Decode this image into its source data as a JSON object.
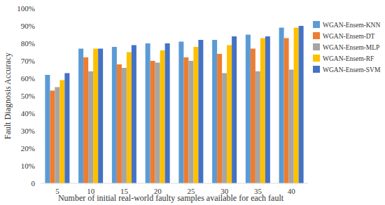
{
  "chart_data": {
    "type": "bar",
    "x_label": "Number of initial real-world faulty samples available for each fault",
    "y_label": "Fault Diagnosis Accuracy",
    "categories": [
      "5",
      "10",
      "15",
      "20",
      "25",
      "30",
      "35",
      "40"
    ],
    "series": [
      {
        "name": "WGAN-Ensem-KNN",
        "color": "#5b9bd5",
        "values": [
          62,
          77,
          78,
          80,
          81,
          82,
          85,
          89
        ]
      },
      {
        "name": "WGAN-Ensem-DT",
        "color": "#ed7d31",
        "values": [
          53,
          72,
          68,
          70,
          72,
          74,
          77,
          83
        ]
      },
      {
        "name": "WGAN-Ensem-MLP",
        "color": "#a5a5a5",
        "values": [
          55,
          64,
          66,
          69,
          70,
          63,
          64,
          65
        ]
      },
      {
        "name": "WGAN-Ensem-RF",
        "color": "#ffc000",
        "values": [
          59,
          77,
          75,
          76,
          78,
          79,
          83,
          89
        ]
      },
      {
        "name": "WGAN-Ensem-SVM",
        "color": "#4472c4",
        "values": [
          63,
          77,
          79,
          80,
          82,
          84,
          84,
          90
        ]
      }
    ],
    "ylim": [
      0,
      100
    ],
    "yticks": [
      0,
      {
        "value": 10,
        "label": "10%"
      },
      {
        "value": 20,
        "label": "20%"
      },
      {
        "value": 30,
        "label": "30%"
      },
      {
        "value": 40,
        "label": "40%"
      },
      {
        "value": 50,
        "label": "50%"
      },
      {
        "value": 60,
        "label": "60%"
      },
      {
        "value": 70,
        "label": "70%"
      },
      {
        "value": 80,
        "label": "80%"
      },
      {
        "value": 90,
        "label": "90%"
      },
      {
        "value": 100,
        "label": "100%"
      }
    ],
    "grid": false,
    "legend": "right"
  }
}
